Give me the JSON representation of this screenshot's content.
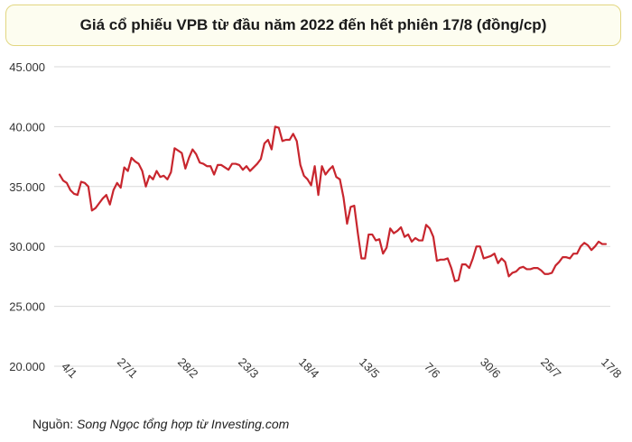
{
  "title": "Giá cổ phiếu VPB từ đầu năm 2022 đến hết phiên 17/8 (đồng/cp)",
  "source": {
    "label": "Nguồn:",
    "text": "Song Ngọc tổng hợp từ Investing.com"
  },
  "colors": {
    "line": "#c8262e",
    "grid": "#d9d9d9",
    "title_border": "#e2d680",
    "title_bg": "#fdfdf0"
  },
  "chart_data": {
    "type": "line",
    "title": "Giá cổ phiếu VPB từ đầu năm 2022 đến hết phiên 17/8 (đồng/cp)",
    "xlabel": "",
    "ylabel": "",
    "ylim": [
      20000,
      45000
    ],
    "yticks": [
      20000,
      25000,
      30000,
      35000,
      40000,
      45000
    ],
    "ytick_labels": [
      "20.000",
      "25.000",
      "30.000",
      "35.000",
      "40.000",
      "45.000"
    ],
    "x_tick_labels": [
      "4/1",
      "27/1",
      "28/2",
      "23/3",
      "18/4",
      "13/5",
      "7/6",
      "30/6",
      "25/7",
      "17/8"
    ],
    "grid": true,
    "series": [
      {
        "values": [
          36000,
          35500,
          35300,
          34700,
          34400,
          34300,
          35400,
          35300,
          35000,
          33000,
          33200,
          33600,
          34000,
          34300,
          33500,
          34700,
          35300,
          34900,
          36600,
          36300,
          37400,
          37100,
          36900,
          36300,
          35000,
          35900,
          35600,
          36300,
          35800,
          35900,
          35600,
          36200,
          38200,
          38000,
          37800,
          36500,
          37400,
          38100,
          37700,
          37000,
          36900,
          36700,
          36700,
          36000,
          36800,
          36800,
          36600,
          36400,
          36900,
          36900,
          36800,
          36400,
          36700,
          36300,
          36600,
          36900,
          37300,
          38600,
          38900,
          38100,
          40000,
          39900,
          38800,
          38900,
          38900,
          39400,
          38800,
          36800,
          35900,
          35600,
          35100,
          36700,
          34300,
          36700,
          36000,
          36400,
          36700,
          35800,
          35600,
          34100,
          31900,
          33300,
          33400,
          31100,
          29000,
          29000,
          31000,
          31000,
          30500,
          30600,
          29400,
          29900,
          31500,
          31100,
          31300,
          31600,
          30800,
          31000,
          30400,
          30700,
          30500,
          30500,
          31800,
          31500,
          30800,
          28800,
          28900,
          28900,
          29000,
          28200,
          27100,
          27200,
          28500,
          28500,
          28200,
          29000,
          30000,
          30000,
          29000,
          29100,
          29200,
          29400,
          28600,
          29000,
          28700,
          27500,
          27800,
          27900,
          28200,
          28300,
          28100,
          28100,
          28200,
          28200,
          28000,
          27700,
          27700,
          27800,
          28400,
          28700,
          29100,
          29100,
          29000,
          29400,
          29400,
          30000,
          30300,
          30100,
          29700,
          30000,
          30400,
          30200,
          30200
        ]
      }
    ]
  }
}
